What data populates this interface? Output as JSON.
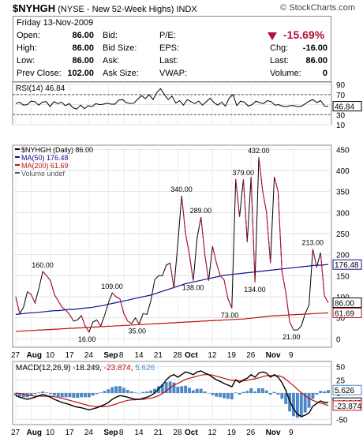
{
  "header": {
    "symbol": "$NYHGH",
    "description": "(NYSE - New 52-Week Highs)",
    "exchange": "INDX",
    "brand": "© StockCharts.com"
  },
  "quote": {
    "date": "Friday  13-Nov-2009",
    "open_label": "Open:",
    "open": "86.00",
    "high_label": "High:",
    "high": "86.00",
    "low_label": "Low:",
    "low": "86.00",
    "prev_close_label": "Prev Close:",
    "prev_close": "102.00",
    "bid_label": "Bid:",
    "bid_size_label": "Bid Size:",
    "ask_label": "Ask:",
    "ask_size_label": "Ask Size:",
    "pe_label": "P/E:",
    "eps_label": "EPS:",
    "last_label_mid": "Last:",
    "vwap_label": "VWAP:",
    "change_pct": "-15.69%",
    "chg_label": "Chg:",
    "chg": "-16.00",
    "last_label": "Last:",
    "last": "86.00",
    "volume_label": "Volume:",
    "volume": "0",
    "change_color": "#b0103a"
  },
  "chart_data": [
    {
      "type": "line",
      "panel": "rsi",
      "title": "RSI(14) 46.84",
      "y_ticks": [
        10,
        30,
        50,
        70,
        90
      ],
      "ylim": [
        10,
        95
      ],
      "last_value_label": "46.84",
      "reference_lines": [
        30,
        70
      ],
      "values": [
        52,
        55,
        49,
        50,
        57,
        56,
        49,
        55,
        56,
        46,
        56,
        52,
        55,
        48,
        52,
        44,
        41,
        49,
        42,
        48,
        46,
        52,
        50,
        51,
        53,
        51,
        51,
        59,
        60,
        54,
        52,
        53,
        61,
        68,
        62,
        70,
        60,
        74,
        82,
        70,
        60,
        67,
        53,
        58,
        49,
        60,
        56,
        52,
        57,
        49,
        56,
        63,
        54,
        49,
        55,
        47,
        63,
        70,
        48,
        57,
        55,
        47,
        50,
        57,
        54,
        52,
        58,
        56,
        49,
        50,
        47,
        46,
        48,
        48,
        46,
        47,
        52,
        57,
        60,
        54,
        58,
        47
      ],
      "color": "#000000"
    },
    {
      "type": "line",
      "panel": "price",
      "legend": [
        "$NYHGH (Daily) 86.00",
        "MA(50) 176.48",
        "MA(200) 61.69",
        "Volume undef"
      ],
      "y_ticks": [
        0,
        50,
        100,
        150,
        200,
        250,
        300,
        350,
        400,
        450
      ],
      "ylim": [
        -20,
        460
      ],
      "series": [
        {
          "name": "$NYHGH (Daily)",
          "color": "#000000",
          "values": [
            100,
            60,
            75,
            112,
            105,
            85,
            120,
            160,
            150,
            138,
            105,
            90,
            75,
            68,
            57,
            42,
            45,
            55,
            30,
            16,
            40,
            45,
            30,
            55,
            85,
            109,
            100,
            95,
            60,
            42,
            36,
            50,
            35,
            60,
            58,
            90,
            140,
            150,
            150,
            175,
            180,
            120,
            225,
            340,
            250,
            200,
            138,
            240,
            289,
            200,
            138,
            220,
            180,
            150,
            140,
            95,
            73,
            380,
            290,
            379,
            230,
            385,
            134,
            432,
            350,
            300,
            180,
            385,
            350,
            160,
            110,
            40,
            21,
            21,
            30,
            60,
            80,
            213,
            170,
            205,
            102,
            86
          ]
        },
        {
          "name": "MA(50)",
          "color": "#101090",
          "values": [
            58,
            59,
            60,
            61,
            62,
            62,
            63,
            64,
            65,
            66,
            67,
            67,
            68,
            69,
            70,
            70,
            71,
            72,
            73,
            74,
            75,
            77,
            78,
            80,
            82,
            84,
            86,
            88,
            90,
            92,
            94,
            96,
            98,
            100,
            102,
            104,
            107,
            110,
            113,
            116,
            119,
            122,
            125,
            128,
            131,
            133,
            135,
            137,
            139,
            141,
            143,
            145,
            147,
            149,
            151,
            152,
            153,
            154,
            155,
            156,
            157,
            158,
            159,
            160,
            161,
            162,
            163,
            164,
            165,
            166,
            167,
            168,
            169,
            170,
            171,
            172,
            173,
            174,
            175,
            175,
            176,
            176.48
          ]
        },
        {
          "name": "MA(200)",
          "color": "#c01010",
          "values": [
            18,
            18,
            19,
            19,
            20,
            20,
            21,
            21,
            22,
            22,
            23,
            23,
            24,
            24,
            25,
            25,
            26,
            26,
            27,
            27,
            28,
            28,
            29,
            29,
            30,
            30,
            31,
            31,
            32,
            32,
            33,
            33,
            34,
            34,
            35,
            35,
            36,
            36,
            37,
            37,
            38,
            38,
            39,
            39,
            40,
            40,
            41,
            41,
            42,
            42,
            43,
            43,
            44,
            44,
            45,
            45,
            46,
            46,
            47,
            47,
            48,
            49,
            50,
            51,
            52,
            53,
            54,
            55,
            55,
            56,
            56,
            57,
            57,
            58,
            58,
            59,
            59,
            60,
            60,
            61,
            61,
            61.69
          ]
        }
      ],
      "annotations": [
        {
          "index": 7,
          "value": 160,
          "label": "160.00"
        },
        {
          "index": 25,
          "value": 109,
          "label": "109.00"
        },
        {
          "index": 19,
          "value": 16,
          "label": "16.00"
        },
        {
          "index": 32,
          "value": 35,
          "label": "35.00"
        },
        {
          "index": 43,
          "value": 340,
          "label": "340.00"
        },
        {
          "index": 48,
          "value": 289,
          "label": "289.00"
        },
        {
          "index": 46,
          "value": 138,
          "label": "138.00"
        },
        {
          "index": 56,
          "value": 73,
          "label": "73.00"
        },
        {
          "index": 59,
          "value": 379,
          "label": "379.00"
        },
        {
          "index": 63,
          "value": 432,
          "label": "432.00"
        },
        {
          "index": 62,
          "value": 134,
          "label": "134.00"
        },
        {
          "index": 72,
          "value": 21,
          "label": "21.00"
        },
        {
          "index": 77,
          "value": 213,
          "label": "213.00"
        }
      ],
      "right_labels": [
        {
          "value": 176.48,
          "label": "176.48"
        },
        {
          "value": 86,
          "label": "86.00"
        },
        {
          "value": 61.69,
          "label": "61.69"
        }
      ],
      "x_tick_labels": [
        {
          "index": 0,
          "label": "27"
        },
        {
          "index": 4,
          "label": "Aug"
        },
        {
          "index": 9,
          "label": "10"
        },
        {
          "index": 14,
          "label": "17"
        },
        {
          "index": 19,
          "label": "24"
        },
        {
          "index": 24,
          "label": "Sep"
        },
        {
          "index": 28,
          "label": "8"
        },
        {
          "index": 32,
          "label": "14"
        },
        {
          "index": 37,
          "label": "21"
        },
        {
          "index": 42,
          "label": "28"
        },
        {
          "index": 45,
          "label": "Oct"
        },
        {
          "index": 51,
          "label": "12"
        },
        {
          "index": 56,
          "label": "19"
        },
        {
          "index": 61,
          "label": "26"
        },
        {
          "index": 66,
          "label": "Nov"
        },
        {
          "index": 72,
          "label": "9"
        }
      ]
    },
    {
      "type": "line",
      "panel": "macd",
      "title": "MACD(12,26,9) -18.249, -23.874, 5.626",
      "title_parts": [
        "MACD(12,26,9) ",
        "-18.249",
        ", ",
        "-23.874",
        ", ",
        "5.626"
      ],
      "y_ticks": [
        -50,
        -25,
        0,
        25,
        50
      ],
      "ylim": [
        -60,
        60
      ],
      "series": [
        {
          "name": "MACD",
          "color": "#000000",
          "values": [
            -5,
            -8,
            -10,
            -12,
            -10,
            -8,
            -5,
            -3,
            -5,
            -8,
            -12,
            -15,
            -18,
            -20,
            -22,
            -25,
            -27,
            -28,
            -30,
            -32,
            -30,
            -28,
            -25,
            -22,
            -18,
            -12,
            -8,
            -5,
            -6,
            -8,
            -10,
            -12,
            -12,
            -10,
            -8,
            -5,
            0,
            8,
            15,
            25,
            32,
            35,
            30,
            35,
            40,
            38,
            35,
            40,
            42,
            38,
            35,
            30,
            25,
            22,
            18,
            15,
            12,
            25,
            20,
            25,
            28,
            35,
            30,
            38,
            40,
            38,
            30,
            35,
            30,
            20,
            5,
            -15,
            -30,
            -40,
            -45,
            -42,
            -38,
            -25,
            -20,
            -15,
            -18,
            -18.249
          ]
        },
        {
          "name": "Signal",
          "color": "#c01010",
          "values": [
            0,
            -1,
            -2,
            -4,
            -5,
            -6,
            -6,
            -6,
            -6,
            -6,
            -7,
            -8,
            -10,
            -12,
            -14,
            -16,
            -18,
            -20,
            -22,
            -24,
            -25,
            -26,
            -26,
            -26,
            -25,
            -23,
            -21,
            -18,
            -16,
            -14,
            -13,
            -13,
            -12,
            -12,
            -11,
            -10,
            -8,
            -5,
            -1,
            4,
            10,
            15,
            18,
            22,
            26,
            28,
            30,
            32,
            34,
            35,
            35,
            34,
            32,
            30,
            28,
            26,
            24,
            24,
            23,
            23,
            24,
            26,
            27,
            29,
            31,
            33,
            33,
            33,
            33,
            31,
            26,
            20,
            14,
            7,
            1,
            -5,
            -10,
            -14,
            -17,
            -19,
            -21,
            -23.874
          ]
        },
        {
          "name": "Histogram",
          "color": "#4c88c8",
          "values": [
            -5,
            -7,
            -8,
            -8,
            -5,
            -2,
            1,
            3,
            1,
            -2,
            -5,
            -7,
            -8,
            -8,
            -8,
            -9,
            -9,
            -8,
            -8,
            -8,
            -5,
            -2,
            1,
            4,
            7,
            11,
            13,
            13,
            10,
            6,
            3,
            1,
            0,
            2,
            3,
            5,
            8,
            13,
            16,
            21,
            22,
            20,
            12,
            13,
            14,
            10,
            5,
            8,
            8,
            3,
            0,
            -4,
            -7,
            -8,
            -10,
            -11,
            -12,
            1,
            -3,
            2,
            4,
            9,
            3,
            9,
            9,
            5,
            -3,
            2,
            -3,
            -11,
            -21,
            -35,
            -44,
            -47,
            -46,
            -37,
            -28,
            -11,
            -3,
            4,
            3,
            5.626
          ]
        }
      ],
      "right_labels": [
        {
          "value": 5.626,
          "label": "5.626"
        },
        {
          "value": -18.249,
          "label": "-18.249"
        },
        {
          "value": -23.874,
          "label": "-23.874"
        }
      ]
    }
  ]
}
